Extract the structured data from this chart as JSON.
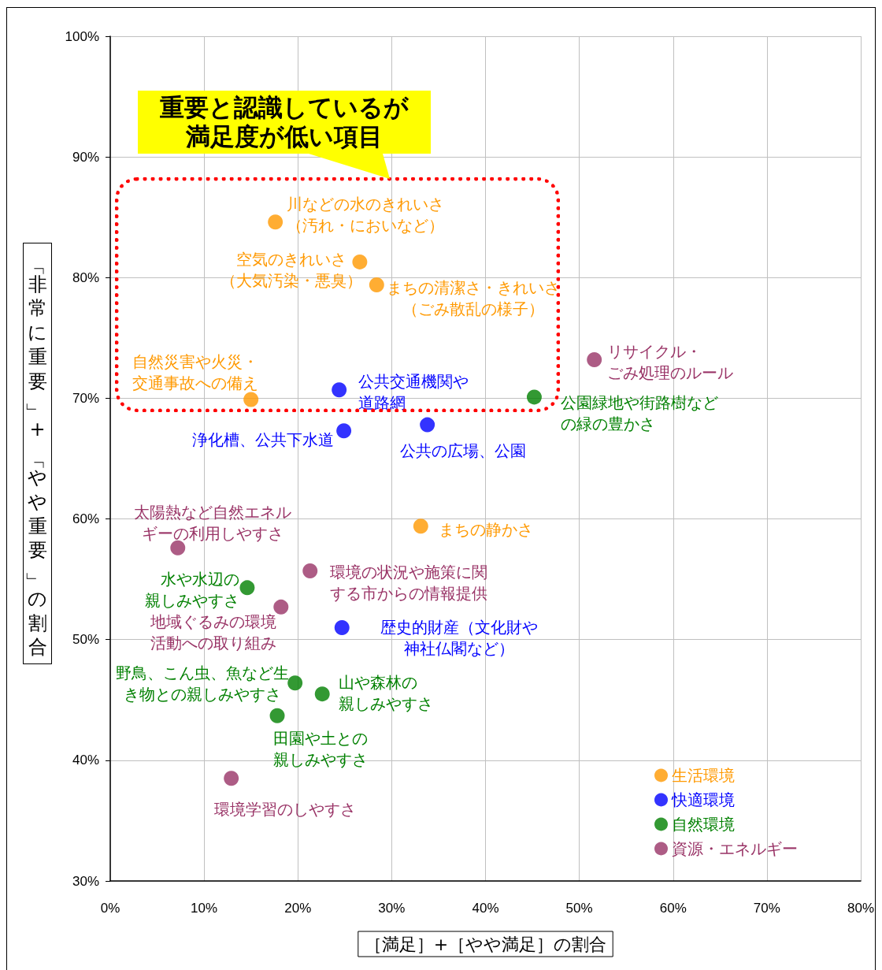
{
  "chart_data": {
    "type": "scatter",
    "xlabel": "［満足］+［やや満足］の割合",
    "ylabel": "「非常に重要」+「やや重要」の割合",
    "xlim": [
      0,
      80
    ],
    "xticks": [
      {
        "value": 0,
        "label": "0%"
      },
      {
        "value": 10,
        "label": "10%"
      },
      {
        "value": 20,
        "label": "20%"
      },
      {
        "value": 30,
        "label": "30%"
      },
      {
        "value": 40,
        "label": "40%"
      },
      {
        "value": 50,
        "label": "50%"
      },
      {
        "value": 60,
        "label": "60%"
      },
      {
        "value": 70,
        "label": "70%"
      },
      {
        "value": 80,
        "label": "80%"
      }
    ],
    "ylim": [
      30,
      100
    ],
    "yticks": [
      {
        "value": 30,
        "label": "30%"
      },
      {
        "value": 40,
        "label": "40%"
      },
      {
        "value": 50,
        "label": "50%"
      },
      {
        "value": 60,
        "label": "60%"
      },
      {
        "value": 70,
        "label": "70%"
      },
      {
        "value": 80,
        "label": "80%"
      },
      {
        "value": 90,
        "label": "90%"
      },
      {
        "value": 100,
        "label": "100%"
      }
    ],
    "grid": true,
    "legend": "bottom right",
    "marker": "circle",
    "series": [
      {
        "name": "生活環境",
        "color": "#ff9900",
        "x": [
          17.6,
          26.6,
          28.4,
          15,
          33.1
        ],
        "values": [
          84.6,
          81.3,
          79.4,
          69.9,
          59.4
        ]
      },
      {
        "name": "快適環境",
        "color": "#0000ff",
        "x": [
          24.4,
          24.9,
          33.8,
          24.7
        ],
        "values": [
          70.7,
          67.3,
          67.8,
          51
        ]
      },
      {
        "name": "自然環境",
        "color": "#008000",
        "x": [
          45.2,
          14.6,
          19.7,
          22.6,
          17.8
        ],
        "values": [
          70.1,
          54.3,
          46.4,
          45.5,
          43.7
        ]
      },
      {
        "name": "資源・エネルギー",
        "color": "#993366",
        "x": [
          51.6,
          7.2,
          21.3,
          18.2,
          12.9
        ],
        "values": [
          73.2,
          57.6,
          55.7,
          52.7,
          38.5
        ]
      }
    ],
    "annotations": [
      "重要と認識しているが満足度が低い項目",
      {
        "text": "川などの水のきれいさ（汚れ・においなど）",
        "x": 17.6,
        "y": 84.6
      },
      {
        "text": "空気のきれいさ（大気汚染・悪臭）",
        "x": 26.6,
        "y": 81.3
      },
      {
        "text": "まちの清潔さ・きれいさ（ごみ散乱の様子）",
        "x": 28.4,
        "y": 79.4
      },
      {
        "text": "自然災害や火災・交通事故への備え",
        "x": 15,
        "y": 69.9
      },
      {
        "text": "まちの静かさ",
        "x": 33.1,
        "y": 59.4
      },
      {
        "text": "公共交通機関や道路網",
        "x": 24.4,
        "y": 70.7
      },
      {
        "text": "浄化槽、公共下水道",
        "x": 24.9,
        "y": 67.3
      },
      {
        "text": "公共の広場、公園",
        "x": 33.8,
        "y": 67.8
      },
      {
        "text": "公園緑地や街路樹などの緑の豊かさ",
        "x": 45.2,
        "y": 70.1
      },
      {
        "text": "リサイクル・ごみ処理のルール",
        "x": 51.6,
        "y": 73.2
      },
      {
        "text": "太陽熱など自然エネルギーの利用しやすさ",
        "x": 7.2,
        "y": 57.6
      },
      {
        "text": "環境の状況や施策に関する市からの情報提供",
        "x": 21.3,
        "y": 55.7
      },
      {
        "text": "水や水辺の親しみやすさ",
        "x": 14.6,
        "y": 54.3
      },
      {
        "text": "地域ぐるみの環境活動への取り組み",
        "x": 18.2,
        "y": 52.7
      },
      {
        "text": "歴史的財産（文化財や神社仏閣など）",
        "x": 24.7,
        "y": 51
      },
      {
        "text": "野鳥、こん虫、魚など生き物との親しみやすさ",
        "x": 19.7,
        "y": 46.4
      },
      {
        "text": "山や森林の親しみやすさ",
        "x": 22.6,
        "y": 45.5
      },
      {
        "text": "田園や土との親しみやすさ",
        "x": 17.8,
        "y": 43.7
      },
      {
        "text": "環境学習のしやすさ",
        "x": 12.9,
        "y": 38.5
      }
    ]
  }
}
